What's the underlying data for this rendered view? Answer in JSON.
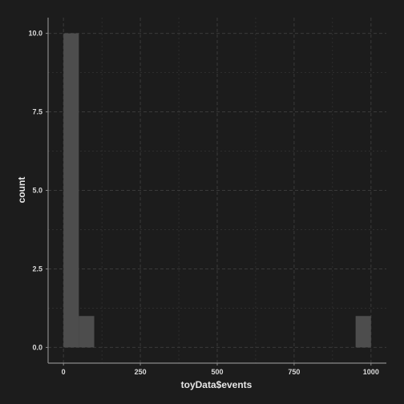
{
  "chart_data": {
    "type": "bar",
    "xlabel": "toyData$events",
    "ylabel": "count",
    "xlim": [
      -50,
      1050
    ],
    "ylim": [
      -0.5,
      10.5
    ],
    "x_ticks": [
      0,
      250,
      500,
      750,
      1000
    ],
    "y_ticks": [
      0,
      2.5,
      5,
      7.5,
      10
    ],
    "x_tick_labels": [
      "0",
      "250",
      "500",
      "750",
      "1000"
    ],
    "y_tick_labels": [
      "0.0",
      "2.5",
      "5.0",
      "7.5",
      "10.0"
    ],
    "grid": true,
    "bins": [
      {
        "x0": 0,
        "x1": 50,
        "count": 10
      },
      {
        "x0": 50,
        "x1": 100,
        "count": 1
      },
      {
        "x0": 950,
        "x1": 1000,
        "count": 1
      }
    ]
  },
  "colors": {
    "background": "#1c1c1c",
    "bar": "#4d4d4d",
    "grid": "#3a3a3a",
    "axis": "#8a8a8a",
    "text": "#d9d9d9"
  }
}
